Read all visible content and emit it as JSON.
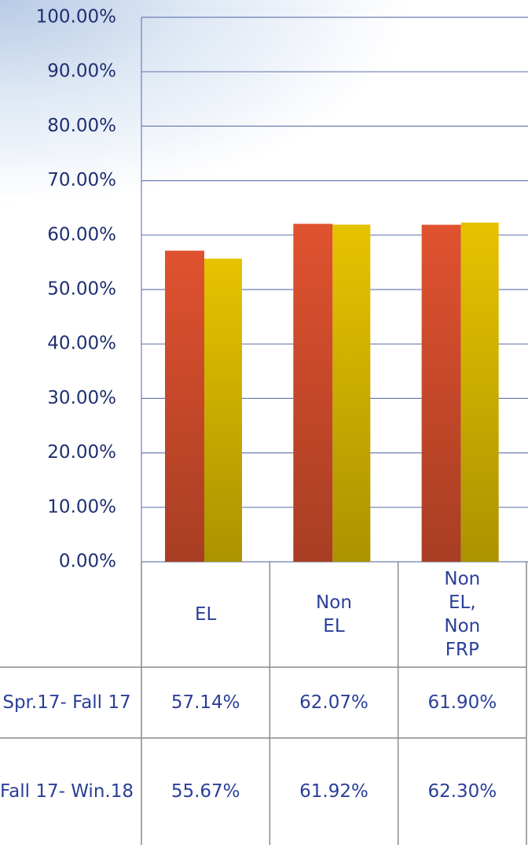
{
  "chart_data": {
    "type": "bar",
    "categories": [
      "EL",
      "Non EL",
      "Non EL, Non FRP"
    ],
    "series": [
      {
        "name": "Spr.17- Fall 17",
        "color": "#e0522f",
        "values": [
          57.14,
          62.07,
          61.9
        ],
        "value_labels": [
          "57.14%",
          "62.07%",
          "61.90%"
        ]
      },
      {
        "name": "Fall 17- Win.18",
        "color": "#e6c300",
        "values": [
          55.67,
          61.92,
          62.3
        ],
        "value_labels": [
          "55.67%",
          "61.92%",
          "62.30%"
        ]
      }
    ],
    "ylim": [
      0,
      100
    ],
    "yticks": [
      {
        "value": 0,
        "label": "0.00%"
      },
      {
        "value": 10,
        "label": "10.00%"
      },
      {
        "value": 20,
        "label": "20.00%"
      },
      {
        "value": 30,
        "label": "30.00%"
      },
      {
        "value": 40,
        "label": "40.00%"
      },
      {
        "value": 50,
        "label": "50.00%"
      },
      {
        "value": 60,
        "label": "60.00%"
      },
      {
        "value": 70,
        "label": "70.00%"
      },
      {
        "value": 80,
        "label": "80.00%"
      },
      {
        "value": 90,
        "label": "90.00%"
      },
      {
        "value": 100,
        "label": "100.00%"
      }
    ],
    "grid": true
  }
}
